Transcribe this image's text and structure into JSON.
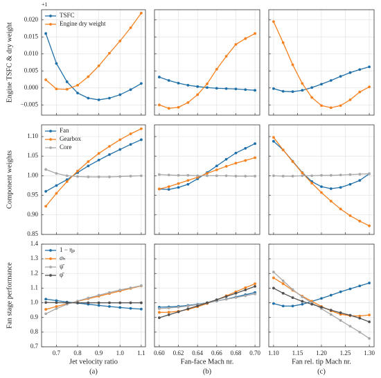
{
  "chart_data": [
    {
      "type": "line",
      "ylabel": "Engine TSFC & dry weight",
      "annotation": "+1",
      "x": [
        0.65,
        0.7,
        0.75,
        0.8,
        0.85,
        0.9,
        0.95,
        1.0,
        1.05,
        1.1
      ],
      "xlim": [
        0.63,
        1.12
      ],
      "xticks": [
        0.7,
        0.8,
        0.9,
        {
          "value": 1,
          "label": "1.0"
        },
        1.1
      ],
      "ylim": [
        -0.008,
        0.023
      ],
      "yticks": [
        {
          "value": -0.005,
          "label": "−0.005"
        },
        {
          "value": 0,
          "label": "0.000"
        },
        {
          "value": 0.005,
          "label": "0.005"
        },
        {
          "value": 0.01,
          "label": "0.010"
        },
        {
          "value": 0.015,
          "label": "0.015"
        },
        {
          "value": 0.02,
          "label": "0.020"
        }
      ],
      "grid": true,
      "legend": "upper left",
      "series": [
        {
          "name": "TSFC",
          "color": "#1f6fa8",
          "values": [
            0.016,
            0.0072,
            0.0018,
            -0.0015,
            -0.003,
            -0.0035,
            -0.003,
            -0.002,
            -0.0005,
            0.0013
          ]
        },
        {
          "name": "Engine dry weight",
          "color": "#f5811f",
          "values": [
            0.0024,
            -0.0003,
            -0.0004,
            0.0008,
            0.0033,
            0.0065,
            0.0102,
            0.0138,
            0.0177,
            0.022
          ]
        }
      ]
    },
    {
      "type": "line",
      "x": [
        0.6,
        0.61,
        0.62,
        0.63,
        0.64,
        0.65,
        0.66,
        0.67,
        0.68,
        0.69,
        0.7
      ],
      "xlim": [
        0.595,
        0.705
      ],
      "xticks": [
        {
          "value": 0.6,
          "label": "0.60"
        },
        0.62,
        0.64,
        0.66,
        0.68,
        {
          "value": 0.7,
          "label": "0.70"
        }
      ],
      "ylim": [
        -0.008,
        0.023
      ],
      "yticks": [
        {
          "value": -0.005,
          "label": "−0.005"
        },
        {
          "value": 0,
          "label": "0.000"
        },
        {
          "value": 0.005,
          "label": "0.005"
        },
        {
          "value": 0.01,
          "label": "0.010"
        },
        {
          "value": 0.015,
          "label": "0.015"
        },
        {
          "value": 0.02,
          "label": "0.020"
        }
      ],
      "grid": true,
      "series": [
        {
          "color": "#1f6fa8",
          "values": [
            0.0032,
            0.0022,
            0.0014,
            0.0008,
            0.0004,
            0.0001,
            -0.0001,
            -0.0002,
            -0.0003,
            -0.0005,
            -0.0007
          ]
        },
        {
          "color": "#f5811f",
          "values": [
            -0.005,
            -0.006,
            -0.0057,
            -0.0043,
            -0.002,
            0.0012,
            0.0055,
            0.0093,
            0.0128,
            0.0145,
            0.016
          ]
        }
      ]
    },
    {
      "type": "line",
      "x": [
        1.1,
        1.12,
        1.14,
        1.16,
        1.18,
        1.2,
        1.22,
        1.24,
        1.26,
        1.28,
        1.3
      ],
      "xlim": [
        1.09,
        1.31
      ],
      "xticks": [
        {
          "value": 1.1,
          "label": "1.10"
        },
        1.15,
        {
          "value": 1.2,
          "label": "1.20"
        },
        1.25,
        {
          "value": 1.3,
          "label": "1.30"
        }
      ],
      "ylim": [
        -0.008,
        0.023
      ],
      "yticks": [
        {
          "value": -0.005,
          "label": "−0.005"
        },
        {
          "value": 0,
          "label": "0.000"
        },
        {
          "value": 0.005,
          "label": "0.005"
        },
        {
          "value": 0.01,
          "label": "0.010"
        },
        {
          "value": 0.015,
          "label": "0.015"
        },
        {
          "value": 0.02,
          "label": "0.020"
        }
      ],
      "grid": true,
      "series": [
        {
          "color": "#1f6fa8",
          "values": [
            -0.0002,
            -0.001,
            -0.0011,
            -0.0007,
            0.0001,
            0.0011,
            0.0022,
            0.0034,
            0.0045,
            0.0054,
            0.0062
          ]
        },
        {
          "color": "#f5811f",
          "values": [
            0.0195,
            0.0133,
            0.0068,
            0.0013,
            -0.0028,
            -0.0052,
            -0.0058,
            -0.0052,
            -0.0035,
            -0.0012,
            0.0003
          ]
        }
      ]
    },
    {
      "type": "line",
      "ylabel": "Component weights",
      "x": [
        0.65,
        0.7,
        0.75,
        0.8,
        0.85,
        0.9,
        0.95,
        1.0,
        1.05,
        1.1
      ],
      "xlim": [
        0.63,
        1.12
      ],
      "xticks": [
        0.7,
        0.8,
        0.9,
        {
          "value": 1,
          "label": "1.0"
        },
        1.1
      ],
      "ylim": [
        0.85,
        1.13
      ],
      "yticks": [
        0.85,
        {
          "value": 0.9,
          "label": "0.90"
        },
        0.95,
        {
          "value": 1,
          "label": "1.00"
        },
        1.05,
        {
          "value": 1.1,
          "label": "1.10"
        }
      ],
      "grid": true,
      "legend": "upper left",
      "series": [
        {
          "name": "Fan",
          "color": "#1f6fa8",
          "values": [
            0.96,
            0.975,
            0.99,
            1.008,
            1.025,
            1.04,
            1.054,
            1.067,
            1.08,
            1.092
          ]
        },
        {
          "name": "Gearbox",
          "color": "#f5811f",
          "values": [
            0.922,
            0.955,
            0.985,
            1.012,
            1.036,
            1.057,
            1.075,
            1.092,
            1.107,
            1.12
          ]
        },
        {
          "name": "Core",
          "color": "#a8a8a8",
          "values": [
            1.016,
            1.006,
            1.0,
            0.998,
            0.997,
            0.997,
            0.997,
            0.998,
            0.999,
            1.0
          ]
        }
      ]
    },
    {
      "type": "line",
      "x": [
        0.6,
        0.61,
        0.62,
        0.63,
        0.64,
        0.65,
        0.66,
        0.67,
        0.68,
        0.69,
        0.7
      ],
      "xlim": [
        0.595,
        0.705
      ],
      "xticks": [
        {
          "value": 0.6,
          "label": "0.60"
        },
        0.62,
        0.64,
        0.66,
        0.68,
        {
          "value": 0.7,
          "label": "0.70"
        }
      ],
      "ylim": [
        0.85,
        1.13
      ],
      "yticks": [
        0.85,
        {
          "value": 0.9,
          "label": "0.90"
        },
        0.95,
        {
          "value": 1,
          "label": "1.00"
        },
        1.05,
        {
          "value": 1.1,
          "label": "1.10"
        }
      ],
      "grid": true,
      "series": [
        {
          "color": "#1f6fa8",
          "values": [
            0.966,
            0.965,
            0.97,
            0.978,
            0.992,
            1.008,
            1.025,
            1.042,
            1.058,
            1.07,
            1.082
          ]
        },
        {
          "color": "#f5811f",
          "values": [
            0.966,
            0.972,
            0.98,
            0.988,
            0.996,
            1.006,
            1.015,
            1.024,
            1.032,
            1.039,
            1.046
          ]
        },
        {
          "color": "#a8a8a8",
          "values": [
            1.003,
            1.002,
            1.001,
            1.001,
            1.0,
            1.0,
            1.0,
            1.0,
            0.999,
            0.999,
            0.999
          ]
        }
      ]
    },
    {
      "type": "line",
      "x": [
        1.1,
        1.12,
        1.14,
        1.16,
        1.18,
        1.2,
        1.22,
        1.24,
        1.26,
        1.28,
        1.3
      ],
      "xlim": [
        1.09,
        1.31
      ],
      "xticks": [
        {
          "value": 1.1,
          "label": "1.10"
        },
        1.15,
        {
          "value": 1.2,
          "label": "1.20"
        },
        1.25,
        {
          "value": 1.3,
          "label": "1.30"
        }
      ],
      "ylim": [
        0.85,
        1.13
      ],
      "yticks": [
        0.85,
        {
          "value": 0.9,
          "label": "0.90"
        },
        0.95,
        {
          "value": 1,
          "label": "1.00"
        },
        1.05,
        {
          "value": 1.1,
          "label": "1.10"
        }
      ],
      "grid": true,
      "series": [
        {
          "color": "#1f6fa8",
          "values": [
            1.088,
            1.066,
            1.037,
            1.008,
            0.985,
            0.972,
            0.967,
            0.97,
            0.978,
            0.988,
            1.005
          ]
        },
        {
          "color": "#f5811f",
          "values": [
            1.098,
            1.066,
            1.036,
            1.007,
            0.981,
            0.957,
            0.935,
            0.915,
            0.898,
            0.884,
            0.872
          ]
        },
        {
          "color": "#a8a8a8",
          "values": [
            1.0,
            0.999,
            0.999,
            1.0,
            1.0,
            1.001,
            1.001,
            1.002,
            1.003,
            1.004,
            1.005
          ]
        }
      ]
    },
    {
      "type": "line",
      "ylabel": "Fan stage performance",
      "xlabel": "Jet velocity ratio",
      "caption": "(a)",
      "x": [
        0.65,
        0.7,
        0.75,
        0.8,
        0.85,
        0.9,
        0.95,
        1.0,
        1.05,
        1.1
      ],
      "xlim": [
        0.63,
        1.12
      ],
      "xticks": [
        0.7,
        0.8,
        0.9,
        {
          "value": 1,
          "label": "1.0"
        },
        1.1
      ],
      "ylim": [
        0.7,
        1.4
      ],
      "yticks": [
        0.7,
        0.8,
        0.9,
        {
          "value": 1,
          "label": "1.0"
        },
        1.1,
        1.2,
        1.3,
        1.4
      ],
      "grid": true,
      "legend": "upper left",
      "series": [
        {
          "name": "1 − ηₚ",
          "color": "#1f6fa8",
          "values": [
            1.025,
            1.015,
            1.005,
            0.998,
            0.99,
            0.982,
            0.975,
            0.968,
            0.962,
            0.957
          ]
        },
        {
          "name": "σₕ",
          "color": "#f5811f",
          "values": [
            0.955,
            0.975,
            0.993,
            1.01,
            1.028,
            1.045,
            1.063,
            1.08,
            1.098,
            1.115
          ]
        },
        {
          "name": "ψ̄",
          "color": "#a8a8a8",
          "values": [
            0.925,
            0.96,
            0.99,
            1.012,
            1.033,
            1.052,
            1.07,
            1.087,
            1.102,
            1.117
          ]
        },
        {
          "name": "φ̄",
          "color": "#505050",
          "values": [
            1.002,
            1.001,
            1.0,
            1.0,
            1.0,
            1.0,
            1.0,
            1.0,
            1.0,
            1.0
          ]
        }
      ]
    },
    {
      "type": "line",
      "xlabel": "Fan-face Mach nr.",
      "caption": "(b)",
      "x": [
        0.6,
        0.61,
        0.62,
        0.63,
        0.64,
        0.65,
        0.66,
        0.67,
        0.68,
        0.69,
        0.7
      ],
      "xlim": [
        0.595,
        0.705
      ],
      "xticks": [
        {
          "value": 0.6,
          "label": "0.60"
        },
        0.62,
        0.64,
        0.66,
        0.68,
        {
          "value": 0.7,
          "label": "0.70"
        }
      ],
      "ylim": [
        0.7,
        1.4
      ],
      "yticks": [
        0.7,
        0.8,
        0.9,
        {
          "value": 1,
          "label": "1.0"
        },
        1.1,
        1.2,
        1.3,
        1.4
      ],
      "grid": true,
      "series": [
        {
          "color": "#1f6fa8",
          "values": [
            0.97,
            0.972,
            0.976,
            0.982,
            0.99,
            1.0,
            1.012,
            1.025,
            1.04,
            1.055,
            1.07
          ]
        },
        {
          "color": "#f5811f",
          "values": [
            0.935,
            0.936,
            0.942,
            0.955,
            0.973,
            0.995,
            1.02,
            1.048,
            1.075,
            1.103,
            1.13
          ]
        },
        {
          "color": "#a8a8a8",
          "values": [
            0.96,
            0.965,
            0.97,
            0.978,
            0.988,
            1.0,
            1.012,
            1.024,
            1.036,
            1.048,
            1.06
          ]
        },
        {
          "color": "#505050",
          "values": [
            0.898,
            0.918,
            0.938,
            0.959,
            0.979,
            1.0,
            1.021,
            1.043,
            1.065,
            1.088,
            1.112
          ]
        }
      ]
    },
    {
      "type": "line",
      "xlabel": "Fan rel. tip Mach nr.",
      "caption": "(c)",
      "x": [
        1.1,
        1.12,
        1.14,
        1.16,
        1.18,
        1.2,
        1.22,
        1.24,
        1.26,
        1.28,
        1.3
      ],
      "xlim": [
        1.09,
        1.31
      ],
      "xticks": [
        {
          "value": 1.1,
          "label": "1.10"
        },
        1.15,
        {
          "value": 1.2,
          "label": "1.20"
        },
        1.25,
        {
          "value": 1.3,
          "label": "1.30"
        }
      ],
      "ylim": [
        0.7,
        1.4
      ],
      "yticks": [
        0.7,
        0.8,
        0.9,
        {
          "value": 1,
          "label": "1.0"
        },
        1.1,
        1.2,
        1.3,
        1.4
      ],
      "grid": true,
      "series": [
        {
          "color": "#1f6fa8",
          "values": [
            0.995,
            0.978,
            0.978,
            0.99,
            1.01,
            1.03,
            1.052,
            1.075,
            1.095,
            1.115,
            1.135
          ]
        },
        {
          "color": "#f5811f",
          "values": [
            1.17,
            1.13,
            1.085,
            1.045,
            1.01,
            0.975,
            0.945,
            0.922,
            0.912,
            0.91,
            0.917
          ]
        },
        {
          "color": "#a8a8a8",
          "values": [
            1.21,
            1.15,
            1.09,
            1.04,
            1.0,
            0.96,
            0.92,
            0.88,
            0.84,
            0.8,
            0.757
          ]
        },
        {
          "color": "#505050",
          "values": [
            1.1,
            1.065,
            1.035,
            1.01,
            0.99,
            0.97,
            0.95,
            0.932,
            0.915,
            0.895,
            0.87
          ]
        }
      ]
    }
  ]
}
